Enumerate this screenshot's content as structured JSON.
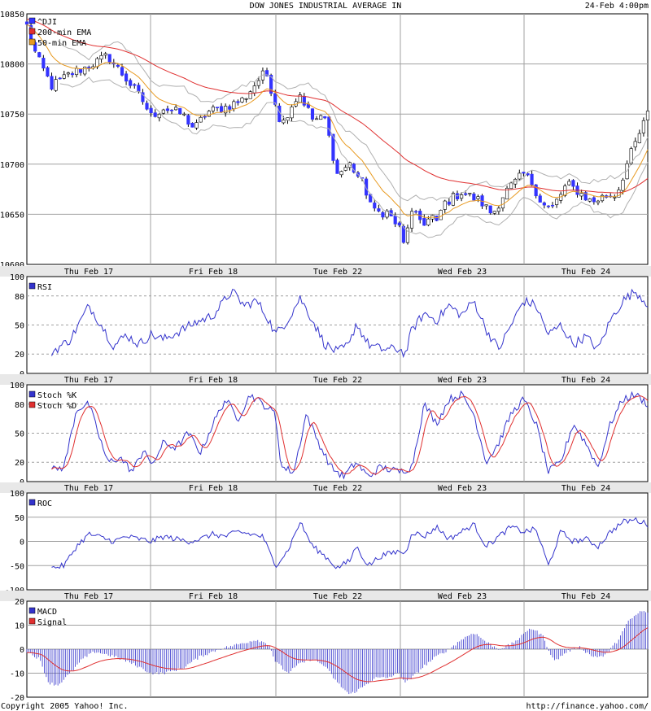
{
  "header": {
    "title": "DOW JONES INDUSTRIAL AVERAGE IN",
    "timestamp": "24-Feb 4:00pm"
  },
  "footer": {
    "copyright": "Copyright 2005 Yahoo! Inc.",
    "url": "http://finance.yahoo.com/"
  },
  "colors": {
    "up": "#ffffff",
    "down": "#3333ff",
    "ema200": "#e03030",
    "ema50": "#e89a20",
    "bands": "#b0b0b0",
    "indicator": "#3333cc",
    "signal": "#e03030",
    "dateband": "#e8e8e8",
    "grid": "#a0a0a0"
  },
  "chart_data": [
    {
      "type": "candlestick",
      "legend": [
        "^DJI",
        "200-min EMA",
        "50-min EMA"
      ],
      "x_labels": [
        "Thu Feb 17",
        "Fri Feb 18",
        "Tue Feb 22",
        "Wed Feb 23",
        "Thu Feb 24"
      ],
      "yticks": [
        10600,
        10650,
        10700,
        10750,
        10800,
        10850
      ],
      "ylim": [
        10600,
        10850
      ],
      "anchors": [
        [
          0,
          10838
        ],
        [
          0.015,
          10808
        ],
        [
          0.04,
          10778
        ],
        [
          0.07,
          10790
        ],
        [
          0.1,
          10798
        ],
        [
          0.13,
          10808
        ],
        [
          0.16,
          10785
        ],
        [
          0.185,
          10765
        ],
        [
          0.2,
          10748
        ],
        [
          0.22,
          10756
        ],
        [
          0.25,
          10750
        ],
        [
          0.27,
          10735
        ],
        [
          0.29,
          10752
        ],
        [
          0.32,
          10757
        ],
        [
          0.35,
          10765
        ],
        [
          0.37,
          10782
        ],
        [
          0.385,
          10792
        ],
        [
          0.4,
          10762
        ],
        [
          0.41,
          10738
        ],
        [
          0.425,
          10758
        ],
        [
          0.44,
          10770
        ],
        [
          0.46,
          10745
        ],
        [
          0.48,
          10745
        ],
        [
          0.5,
          10690
        ],
        [
          0.52,
          10700
        ],
        [
          0.54,
          10682
        ],
        [
          0.56,
          10652
        ],
        [
          0.58,
          10652
        ],
        [
          0.6,
          10636
        ],
        [
          0.61,
          10612
        ],
        [
          0.615,
          10652
        ],
        [
          0.64,
          10642
        ],
        [
          0.655,
          10648
        ],
        [
          0.66,
          10640
        ],
        [
          0.67,
          10660
        ],
        [
          0.7,
          10672
        ],
        [
          0.73,
          10663
        ],
        [
          0.75,
          10650
        ],
        [
          0.77,
          10672
        ],
        [
          0.8,
          10690
        ],
        [
          0.815,
          10680
        ],
        [
          0.83,
          10660
        ],
        [
          0.845,
          10655
        ],
        [
          0.87,
          10680
        ],
        [
          0.89,
          10672
        ],
        [
          0.91,
          10662
        ],
        [
          0.93,
          10668
        ],
        [
          0.95,
          10670
        ],
        [
          0.97,
          10706
        ],
        [
          0.985,
          10728
        ],
        [
          1,
          10750
        ]
      ]
    },
    {
      "type": "line",
      "series": [
        {
          "name": "RSI"
        }
      ],
      "yticks": [
        0,
        20,
        50,
        80,
        100
      ],
      "ylim": [
        0,
        100
      ],
      "x_labels": [
        "Thu Feb 17",
        "Fri Feb 18",
        "Tue Feb 22",
        "Wed Feb 23",
        "Thu Feb 24"
      ],
      "anchors": [
        [
          0.04,
          22
        ],
        [
          0.07,
          35
        ],
        [
          0.1,
          70
        ],
        [
          0.12,
          50
        ],
        [
          0.14,
          28
        ],
        [
          0.16,
          40
        ],
        [
          0.18,
          30
        ],
        [
          0.2,
          40
        ],
        [
          0.22,
          35
        ],
        [
          0.25,
          45
        ],
        [
          0.27,
          52
        ],
        [
          0.3,
          60
        ],
        [
          0.33,
          85
        ],
        [
          0.35,
          70
        ],
        [
          0.37,
          75
        ],
        [
          0.39,
          55
        ],
        [
          0.4,
          40
        ],
        [
          0.42,
          55
        ],
        [
          0.44,
          78
        ],
        [
          0.46,
          55
        ],
        [
          0.48,
          30
        ],
        [
          0.5,
          22
        ],
        [
          0.52,
          30
        ],
        [
          0.53,
          52
        ],
        [
          0.55,
          30
        ],
        [
          0.57,
          25
        ],
        [
          0.6,
          25
        ],
        [
          0.61,
          20
        ],
        [
          0.62,
          45
        ],
        [
          0.64,
          62
        ],
        [
          0.66,
          55
        ],
        [
          0.68,
          70
        ],
        [
          0.7,
          60
        ],
        [
          0.72,
          75
        ],
        [
          0.74,
          45
        ],
        [
          0.76,
          25
        ],
        [
          0.78,
          50
        ],
        [
          0.8,
          75
        ],
        [
          0.82,
          70
        ],
        [
          0.84,
          40
        ],
        [
          0.86,
          50
        ],
        [
          0.88,
          30
        ],
        [
          0.9,
          38
        ],
        [
          0.92,
          25
        ],
        [
          0.94,
          55
        ],
        [
          0.96,
          75
        ],
        [
          0.98,
          85
        ],
        [
          1,
          72
        ]
      ]
    },
    {
      "type": "line",
      "series": [
        {
          "name": "Stoch %K"
        },
        {
          "name": "Stoch %D"
        }
      ],
      "yticks": [
        0,
        20,
        50,
        80,
        100
      ],
      "ylim": [
        0,
        100
      ],
      "x_labels": [
        "Thu Feb 17",
        "Fri Feb 18",
        "Tue Feb 22",
        "Wed Feb 23",
        "Thu Feb 24"
      ],
      "anchors": [
        [
          0.04,
          12
        ],
        [
          0.06,
          15
        ],
        [
          0.08,
          75
        ],
        [
          0.1,
          80
        ],
        [
          0.11,
          60
        ],
        [
          0.13,
          20
        ],
        [
          0.15,
          25
        ],
        [
          0.17,
          10
        ],
        [
          0.19,
          35
        ],
        [
          0.2,
          15
        ],
        [
          0.22,
          40
        ],
        [
          0.24,
          35
        ],
        [
          0.26,
          50
        ],
        [
          0.28,
          30
        ],
        [
          0.3,
          60
        ],
        [
          0.32,
          85
        ],
        [
          0.34,
          65
        ],
        [
          0.36,
          90
        ],
        [
          0.38,
          80
        ],
        [
          0.4,
          70
        ],
        [
          0.41,
          15
        ],
        [
          0.43,
          10
        ],
        [
          0.45,
          70
        ],
        [
          0.47,
          40
        ],
        [
          0.49,
          15
        ],
        [
          0.51,
          5
        ],
        [
          0.53,
          20
        ],
        [
          0.55,
          5
        ],
        [
          0.57,
          15
        ],
        [
          0.6,
          10
        ],
        [
          0.62,
          15
        ],
        [
          0.64,
          80
        ],
        [
          0.66,
          60
        ],
        [
          0.68,
          85
        ],
        [
          0.7,
          90
        ],
        [
          0.72,
          70
        ],
        [
          0.74,
          20
        ],
        [
          0.76,
          40
        ],
        [
          0.78,
          70
        ],
        [
          0.8,
          85
        ],
        [
          0.82,
          60
        ],
        [
          0.84,
          10
        ],
        [
          0.86,
          20
        ],
        [
          0.88,
          60
        ],
        [
          0.9,
          40
        ],
        [
          0.92,
          15
        ],
        [
          0.94,
          60
        ],
        [
          0.96,
          85
        ],
        [
          0.98,
          90
        ],
        [
          1,
          80
        ]
      ]
    },
    {
      "type": "line",
      "series": [
        {
          "name": "ROC"
        }
      ],
      "yticks": [
        -100,
        -50,
        0,
        50,
        100
      ],
      "ylim": [
        -100,
        100
      ],
      "x_labels": [
        "Thu Feb 17",
        "Fri Feb 18",
        "Tue Feb 22",
        "Wed Feb 23",
        "Thu Feb 24"
      ],
      "anchors": [
        [
          0.04,
          -55
        ],
        [
          0.06,
          -50
        ],
        [
          0.08,
          -10
        ],
        [
          0.1,
          15
        ],
        [
          0.12,
          8
        ],
        [
          0.14,
          0
        ],
        [
          0.16,
          10
        ],
        [
          0.18,
          5
        ],
        [
          0.2,
          0
        ],
        [
          0.22,
          10
        ],
        [
          0.24,
          5
        ],
        [
          0.26,
          0
        ],
        [
          0.28,
          5
        ],
        [
          0.3,
          15
        ],
        [
          0.32,
          10
        ],
        [
          0.34,
          20
        ],
        [
          0.36,
          15
        ],
        [
          0.38,
          10
        ],
        [
          0.4,
          -50
        ],
        [
          0.42,
          -20
        ],
        [
          0.44,
          40
        ],
        [
          0.46,
          -10
        ],
        [
          0.48,
          -30
        ],
        [
          0.5,
          -55
        ],
        [
          0.52,
          -40
        ],
        [
          0.53,
          -10
        ],
        [
          0.55,
          -50
        ],
        [
          0.57,
          -30
        ],
        [
          0.6,
          -20
        ],
        [
          0.61,
          -25
        ],
        [
          0.62,
          20
        ],
        [
          0.64,
          10
        ],
        [
          0.66,
          30
        ],
        [
          0.68,
          5
        ],
        [
          0.7,
          20
        ],
        [
          0.72,
          35
        ],
        [
          0.74,
          -10
        ],
        [
          0.76,
          10
        ],
        [
          0.78,
          30
        ],
        [
          0.8,
          20
        ],
        [
          0.82,
          25
        ],
        [
          0.84,
          -50
        ],
        [
          0.86,
          20
        ],
        [
          0.88,
          0
        ],
        [
          0.9,
          5
        ],
        [
          0.92,
          -10
        ],
        [
          0.94,
          20
        ],
        [
          0.96,
          40
        ],
        [
          0.98,
          45
        ],
        [
          1,
          35
        ]
      ]
    },
    {
      "type": "bar",
      "series": [
        {
          "name": "MACD"
        },
        {
          "name": "Signal"
        }
      ],
      "yticks": [
        -20,
        -10,
        0,
        10,
        20
      ],
      "ylim": [
        -20,
        20
      ],
      "anchors": [
        [
          0,
          -1
        ],
        [
          0.02,
          -4
        ],
        [
          0.035,
          -14
        ],
        [
          0.05,
          -15
        ],
        [
          0.07,
          -10
        ],
        [
          0.09,
          -4
        ],
        [
          0.11,
          -1
        ],
        [
          0.14,
          -3
        ],
        [
          0.17,
          -6
        ],
        [
          0.2,
          -10
        ],
        [
          0.22,
          -10
        ],
        [
          0.25,
          -8
        ],
        [
          0.28,
          -3
        ],
        [
          0.31,
          0
        ],
        [
          0.34,
          2
        ],
        [
          0.37,
          4
        ],
        [
          0.39,
          2
        ],
        [
          0.4,
          -5
        ],
        [
          0.42,
          -10
        ],
        [
          0.44,
          -6
        ],
        [
          0.46,
          -4
        ],
        [
          0.48,
          -7
        ],
        [
          0.5,
          -14
        ],
        [
          0.52,
          -19
        ],
        [
          0.54,
          -16
        ],
        [
          0.56,
          -12
        ],
        [
          0.58,
          -12
        ],
        [
          0.6,
          -10
        ],
        [
          0.61,
          -14
        ],
        [
          0.62,
          -12
        ],
        [
          0.64,
          -7
        ],
        [
          0.66,
          -3
        ],
        [
          0.68,
          0
        ],
        [
          0.7,
          4
        ],
        [
          0.72,
          7
        ],
        [
          0.74,
          3
        ],
        [
          0.76,
          0
        ],
        [
          0.78,
          2
        ],
        [
          0.8,
          6
        ],
        [
          0.81,
          9
        ],
        [
          0.83,
          6
        ],
        [
          0.84,
          0
        ],
        [
          0.85,
          -5
        ],
        [
          0.87,
          -1
        ],
        [
          0.89,
          1
        ],
        [
          0.91,
          -3
        ],
        [
          0.93,
          -3
        ],
        [
          0.95,
          3
        ],
        [
          0.97,
          12
        ],
        [
          0.99,
          16
        ],
        [
          1,
          15
        ]
      ]
    }
  ]
}
